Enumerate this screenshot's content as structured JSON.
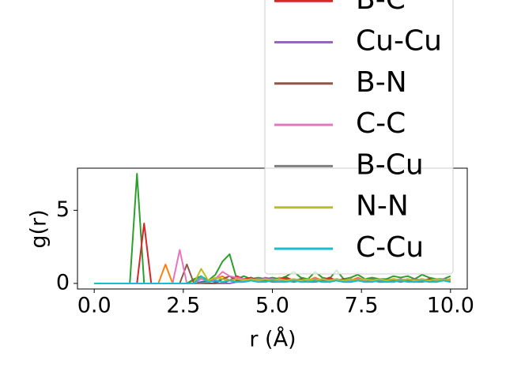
{
  "chart_data": {
    "type": "line",
    "xlabel": "r (Å)",
    "ylabel": "g(r)",
    "x": [
      0,
      0.2,
      0.4,
      0.6,
      0.8,
      1,
      1.2,
      1.4,
      1.6,
      1.8,
      2,
      2.2,
      2.4,
      2.6,
      2.8,
      3,
      3.2,
      3.4,
      3.6,
      3.8,
      4,
      4.2,
      4.4,
      4.6,
      4.8,
      5,
      5.2,
      5.4,
      5.6,
      5.8,
      6,
      6.2,
      6.4,
      6.6,
      6.8,
      7,
      7.2,
      7.4,
      7.6,
      7.8,
      8,
      8.2,
      8.4,
      8.6,
      8.8,
      9,
      9.2,
      9.4,
      9.6,
      9.8,
      10
    ],
    "xlim": [
      -0.47,
      10.47
    ],
    "xticks": [
      {
        "value": 0,
        "label": "0.0"
      },
      {
        "value": 2.5,
        "label": "2.5"
      },
      {
        "value": 5,
        "label": "5.0"
      },
      {
        "value": 7.5,
        "label": "7.5"
      },
      {
        "value": 10,
        "label": "10.0"
      }
    ],
    "ylim": [
      -0.38,
      7.88
    ],
    "yticks": [
      0,
      5
    ],
    "series": [
      {
        "color": "#1f77b4",
        "values": [
          0,
          0,
          0,
          0,
          0,
          0,
          0,
          0,
          0,
          0,
          0,
          0,
          0,
          0,
          0,
          0.1,
          0.2,
          0.1,
          0.3,
          0.2,
          0.1,
          0.2,
          0.3,
          0.2,
          0.1,
          0.3,
          0.2,
          0.2,
          0.1,
          0.2,
          0.3,
          0.2,
          0.1,
          0.2,
          0.2,
          0.3,
          0.1,
          0.2,
          0.2,
          0.1,
          0.3,
          0.2,
          0.2,
          0.1,
          0.2,
          0.3,
          0.2,
          0.1,
          0.2,
          0.2,
          0.3
        ]
      },
      {
        "color": "#ff7f0e",
        "values": [
          0,
          0,
          0,
          0,
          0,
          0,
          0,
          0,
          0,
          0,
          1.3,
          0,
          0,
          0,
          0.2,
          0.4,
          0.1,
          0.3,
          0.5,
          0.2,
          0.3,
          0.2,
          0.4,
          0.2,
          0.3,
          0.2,
          0.4,
          0.3,
          0.2,
          0.3,
          0.2,
          0.4,
          0.2,
          0.3,
          0.2,
          0.3,
          0.2,
          0.4,
          0.2,
          0.3,
          0.2,
          0.3,
          0.2,
          0.2,
          0.3,
          0.2,
          0.3,
          0.2,
          0.2,
          0.3,
          0.2
        ]
      },
      {
        "color": "#2ca02c",
        "values": [
          0,
          0,
          0,
          0,
          0,
          0,
          7.5,
          0,
          0,
          0,
          0,
          0,
          0,
          0,
          0.3,
          0.5,
          0.2,
          0.6,
          1.5,
          2.0,
          0.3,
          0.5,
          0.3,
          0.4,
          0.3,
          0.4,
          0.3,
          0.5,
          0.8,
          0.4,
          0.3,
          0.8,
          0.4,
          0.3,
          0.9,
          0.3,
          0.4,
          0.6,
          0.3,
          0.4,
          0.3,
          0.3,
          0.5,
          0.4,
          0.5,
          0.3,
          0.6,
          0.4,
          0.3,
          0.3,
          0.5
        ]
      },
      {
        "name": "B-C",
        "color": "#d62728",
        "values": [
          0,
          0,
          0,
          0,
          0,
          0,
          0,
          4.1,
          0,
          0,
          0,
          0,
          0,
          0,
          0,
          0,
          0,
          0,
          0,
          0.2,
          0.5,
          0.3,
          0.4,
          0.2,
          0.3,
          0.2,
          0.3,
          0.4,
          0.2,
          0.3,
          0.2,
          0.3,
          0.2,
          0.4,
          0.2,
          0.3,
          0.2,
          0.3,
          0.2,
          0.2,
          0.3,
          0.2,
          0.3,
          0.2,
          0.2,
          0.3,
          0.2,
          0.3,
          0.2,
          0.2,
          0.3
        ]
      },
      {
        "name": "Cu-Cu",
        "color": "#9467bd",
        "values": [
          0,
          0,
          0,
          0,
          0,
          0,
          0,
          0,
          0,
          0,
          0,
          0,
          0,
          0,
          0,
          0,
          0,
          0,
          0,
          0,
          0.1,
          0.2,
          0.3,
          0.2,
          0.4,
          0.3,
          0.2,
          0.3,
          0.2,
          0.3,
          0.2,
          0.3,
          0.2,
          0.2,
          0.3,
          0.2,
          0.3,
          0.2,
          0.2,
          0.3,
          0.2,
          0.2,
          0.3,
          0.2,
          0.2,
          0.3,
          0.2,
          0.2,
          0.3,
          0.2,
          0.2
        ]
      },
      {
        "name": "B-N",
        "color": "#8c564b",
        "values": [
          0,
          0,
          0,
          0,
          0,
          0,
          0,
          0,
          0,
          0,
          0,
          0,
          0,
          1.3,
          0,
          0,
          0,
          0,
          0.3,
          0.5,
          0.2,
          0.3,
          0.2,
          0.3,
          0.2,
          0.3,
          0.2,
          0.3,
          0.2,
          0.3,
          0.2,
          0.2,
          0.3,
          0.2,
          0.3,
          0.2,
          0.2,
          0.3,
          0.2,
          0.2,
          0.3,
          0.2,
          0.2,
          0.3,
          0.2,
          0.2,
          0.3,
          0.2,
          0.2,
          0.3,
          0.2
        ]
      },
      {
        "name": "C-C",
        "color": "#e377c2",
        "values": [
          0,
          0,
          0,
          0,
          0,
          0,
          0,
          0,
          0,
          0,
          0,
          0,
          2.3,
          0,
          0,
          0.3,
          0.2,
          0.3,
          0.8,
          0.5,
          0.4,
          0.3,
          0.2,
          0.3,
          0.2,
          0.3,
          0.2,
          0.2,
          0.3,
          0.2,
          0.2,
          0.3,
          0.2,
          0.2,
          0.3,
          0.2,
          0.2,
          0.3,
          0.2,
          0.2,
          0.3,
          0.2,
          0.2,
          0.3,
          0.2,
          0.2,
          0.3,
          0.2,
          0.2,
          0.3,
          0.2
        ]
      },
      {
        "name": "B-Cu",
        "color": "#7f7f7f",
        "values": [
          0,
          0,
          0,
          0,
          0,
          0,
          0,
          0,
          0,
          0,
          0,
          0,
          0,
          0,
          0,
          0,
          0.1,
          0.2,
          0.1,
          0.2,
          0.1,
          0.1,
          0.2,
          0.1,
          0.2,
          0.1,
          0.1,
          0.2,
          0.1,
          0.2,
          0.1,
          0.1,
          0.2,
          0.1,
          0.2,
          0.1,
          0.1,
          0.2,
          0.1,
          0.2,
          0.1,
          0.1,
          0.2,
          0.1,
          0.2,
          0.1,
          0.1,
          0.2,
          0.1,
          0.2,
          0.1
        ]
      },
      {
        "name": "N-N",
        "color": "#bcbd22",
        "values": [
          0,
          0,
          0,
          0,
          0,
          0,
          0,
          0,
          0,
          0,
          0,
          0,
          0,
          0,
          0,
          1.0,
          0.2,
          0.4,
          0.3,
          0.2,
          0.3,
          0.2,
          0.3,
          0.2,
          0.3,
          0.2,
          0.3,
          0.2,
          0.3,
          0.2,
          0.3,
          0.2,
          0.3,
          0.2,
          0.3,
          0.2,
          0.3,
          0.2,
          0.3,
          0.2,
          0.3,
          0.2,
          0.3,
          0.2,
          0.3,
          0.2,
          0.3,
          0.2,
          0.3,
          0.2,
          0.3
        ]
      },
      {
        "name": "C-Cu",
        "color": "#17becf",
        "values": [
          0,
          0,
          0,
          0,
          0,
          0,
          0,
          0,
          0,
          0,
          0,
          0,
          0,
          0,
          0,
          0.5,
          0.1,
          0.2,
          0.1,
          0.2,
          0.1,
          0.1,
          0.2,
          0.1,
          0.1,
          0.2,
          0.1,
          0.1,
          0.2,
          0.1,
          0.1,
          0.2,
          0.1,
          0.1,
          0.2,
          0.1,
          0.1,
          0.2,
          0.1,
          0.1,
          0.2,
          0.1,
          0.1,
          0.2,
          0.1,
          0.1,
          0.2,
          0.1,
          0.1,
          0.2,
          0.1
        ]
      }
    ],
    "legend": "upper right"
  }
}
